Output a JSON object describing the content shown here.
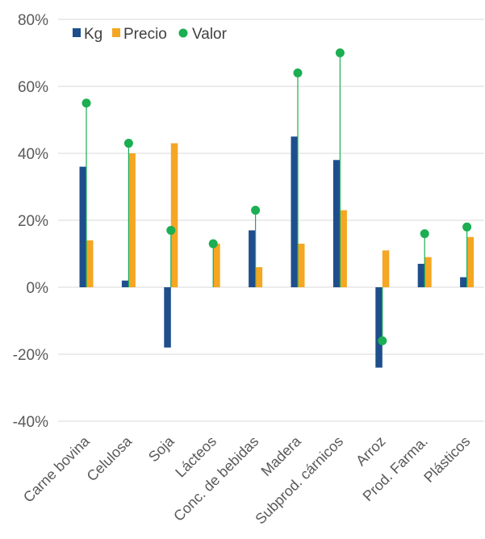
{
  "chart_data": {
    "type": "bar",
    "categories": [
      "Carne bovina",
      "Celulosa",
      "Soja",
      "Lácteos",
      "Conc. de bebidas",
      "Madera",
      "Subprod. cárnicos",
      "Arroz",
      "Prod. Farma.",
      "Plásticos"
    ],
    "series": [
      {
        "name": "Kg",
        "type": "bar",
        "color": "#1F4E8C",
        "values": [
          36,
          2,
          -18,
          0,
          17,
          45,
          38,
          -24,
          7,
          3
        ]
      },
      {
        "name": "Precio",
        "type": "bar",
        "color": "#F5A623",
        "values": [
          14,
          40,
          43,
          13,
          6,
          13,
          23,
          11,
          9,
          15
        ]
      },
      {
        "name": "Valor",
        "type": "scatter",
        "color": "#1BAE52",
        "values": [
          55,
          43,
          17,
          13,
          23,
          64,
          70,
          -16,
          16,
          18
        ]
      }
    ],
    "yticks": [
      "-40%",
      "-20%",
      "0%",
      "20%",
      "40%",
      "60%",
      "80%"
    ],
    "ylim": [
      -40,
      80
    ],
    "grid": true,
    "legend_position": "top-left"
  }
}
